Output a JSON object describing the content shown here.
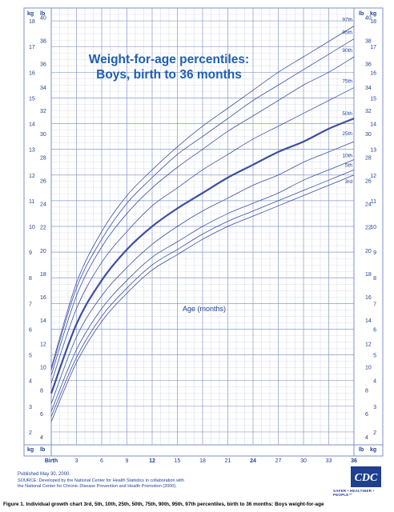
{
  "chart_data": {
    "type": "line",
    "title_line1": "Weight-for-age percentiles:",
    "title_line2": "Boys, birth to 36 months",
    "xlabel": "Age (months)",
    "left_unit": "kg",
    "right_unit": "lb",
    "xlim": [
      0,
      36
    ],
    "x_ticks": [
      {
        "v": 0,
        "label": "Birth"
      },
      {
        "v": 3,
        "label": "3"
      },
      {
        "v": 6,
        "label": "6"
      },
      {
        "v": 9,
        "label": "9"
      },
      {
        "v": 12,
        "label": "12"
      },
      {
        "v": 15,
        "label": "15"
      },
      {
        "v": 18,
        "label": "18"
      },
      {
        "v": 21,
        "label": "21"
      },
      {
        "v": 24,
        "label": "24"
      },
      {
        "v": 27,
        "label": "27"
      },
      {
        "v": 30,
        "label": "30"
      },
      {
        "v": 33,
        "label": "33"
      },
      {
        "v": 36,
        "label": "36"
      }
    ],
    "kg_range": [
      1.5,
      18.5
    ],
    "kg_ticks": [
      2,
      3,
      4,
      5,
      6,
      7,
      8,
      9,
      10,
      11,
      12,
      13,
      14,
      15,
      16,
      17,
      18
    ],
    "lb_ticks": [
      4,
      6,
      8,
      10,
      12,
      14,
      16,
      18,
      20,
      22,
      24,
      26,
      28,
      30,
      32,
      34,
      36,
      38,
      40
    ],
    "x": [
      0,
      3,
      6,
      9,
      12,
      15,
      18,
      21,
      24,
      27,
      30,
      33,
      36
    ],
    "series": [
      {
        "name": "3rd",
        "values": [
          2.4,
          4.7,
          6.3,
          7.4,
          8.3,
          8.9,
          9.5,
          10.0,
          10.4,
          10.8,
          11.2,
          11.6,
          12.0
        ]
      },
      {
        "name": "5th",
        "values": [
          2.6,
          4.9,
          6.5,
          7.6,
          8.5,
          9.1,
          9.7,
          10.2,
          10.6,
          11.0,
          11.4,
          11.8,
          12.2
        ]
      },
      {
        "name": "10th",
        "values": [
          2.8,
          5.2,
          6.8,
          7.9,
          8.8,
          9.4,
          10.0,
          10.5,
          10.9,
          11.3,
          11.8,
          12.2,
          12.6
        ]
      },
      {
        "name": "25th",
        "values": [
          3.1,
          5.7,
          7.3,
          8.4,
          9.3,
          10.0,
          10.6,
          11.1,
          11.6,
          12.0,
          12.5,
          12.9,
          13.3
        ]
      },
      {
        "name": "50th",
        "values": [
          3.5,
          6.2,
          7.9,
          9.1,
          10.0,
          10.7,
          11.3,
          11.9,
          12.4,
          12.9,
          13.3,
          13.8,
          14.2
        ]
      },
      {
        "name": "75th",
        "values": [
          3.9,
          6.8,
          8.6,
          9.8,
          10.8,
          11.5,
          12.2,
          12.8,
          13.4,
          13.9,
          14.4,
          14.9,
          15.4
        ]
      },
      {
        "name": "90th",
        "values": [
          4.2,
          7.3,
          9.2,
          10.5,
          11.5,
          12.3,
          13.0,
          13.7,
          14.3,
          14.9,
          15.5,
          16.0,
          16.6
        ]
      },
      {
        "name": "95th",
        "values": [
          4.4,
          7.6,
          9.5,
          10.9,
          11.9,
          12.8,
          13.5,
          14.2,
          14.9,
          15.5,
          16.1,
          16.7,
          17.3
        ]
      },
      {
        "name": "97th",
        "values": [
          4.5,
          7.8,
          9.8,
          11.2,
          12.2,
          13.1,
          13.9,
          14.6,
          15.3,
          16.0,
          16.6,
          17.2,
          17.8
        ]
      }
    ],
    "grid": true,
    "colors": {
      "line": "#3d4fa0",
      "grid": "#7c8fc8",
      "text": "#1f3f8f",
      "bg": "#ffffff"
    }
  },
  "footer": {
    "published": "Published May 30, 2000.",
    "source_line1": "SOURCE: Developed by the National Center for Health Statistics in collaboration with",
    "source_line2": "the National Center for Chronic Disease Prevention and Health Promotion (2000).",
    "logo_text": "CDC",
    "logo_tagline": "SAFER • HEALTHIER • PEOPLE™"
  },
  "caption": "Figure 1. Individual growth chart 3rd, 5th, 10th, 25th, 50th, 75th, 90th, 95th, 97th percentiles, birth to 36 months: Boys weight-for-age"
}
